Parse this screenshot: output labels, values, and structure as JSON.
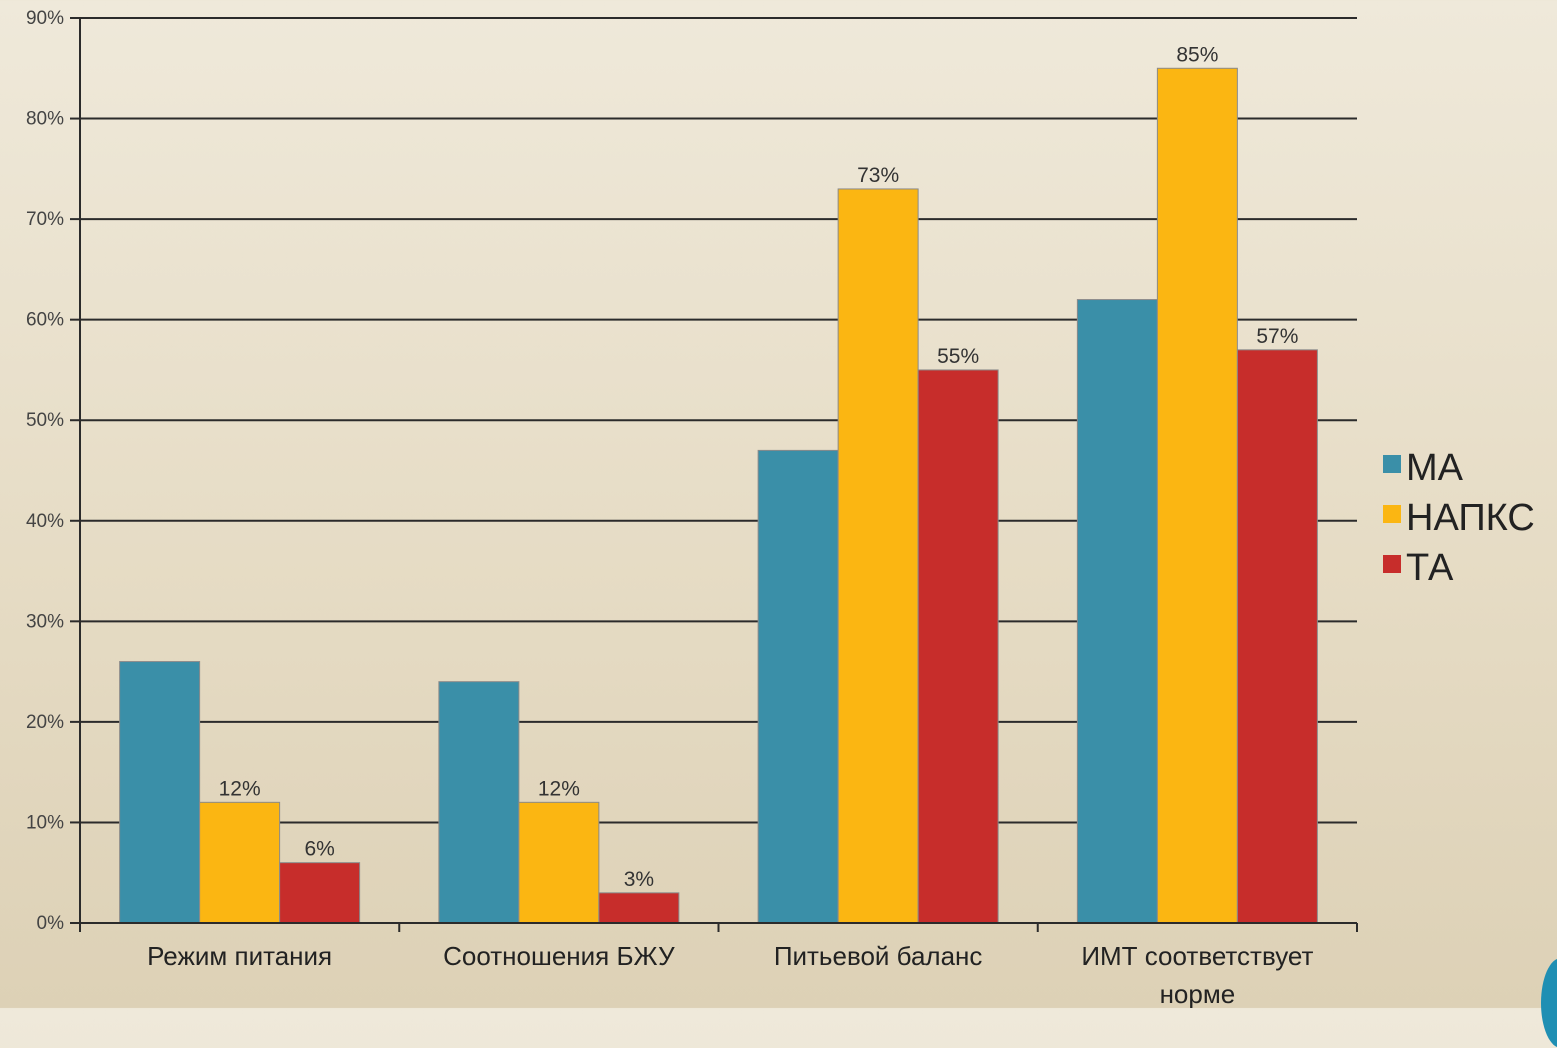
{
  "chart_data": {
    "type": "bar",
    "categories": [
      "Режим питания",
      "Соотношения БЖУ",
      "Питьевой баланс",
      "ИМТ соответствует норме"
    ],
    "series": [
      {
        "name": "МА",
        "color": "#3a8fa8",
        "values": [
          26,
          24,
          47,
          62
        ],
        "labels": [
          "",
          "",
          "",
          ""
        ]
      },
      {
        "name": "НАПКС",
        "color": "#fbb612",
        "values": [
          12,
          12,
          73,
          85
        ],
        "labels": [
          "12%",
          "12%",
          "73%",
          "85%"
        ]
      },
      {
        "name": "ТА",
        "color": "#c72d2b",
        "values": [
          6,
          3,
          55,
          57
        ],
        "labels": [
          "6%",
          "3%",
          "55%",
          "57%"
        ]
      }
    ],
    "ylim": [
      0,
      90
    ],
    "yticks": [
      "0%",
      "10%",
      "20%",
      "30%",
      "40%",
      "50%",
      "60%",
      "70%",
      "80%",
      "90%"
    ],
    "grid": true,
    "legend": "right"
  }
}
